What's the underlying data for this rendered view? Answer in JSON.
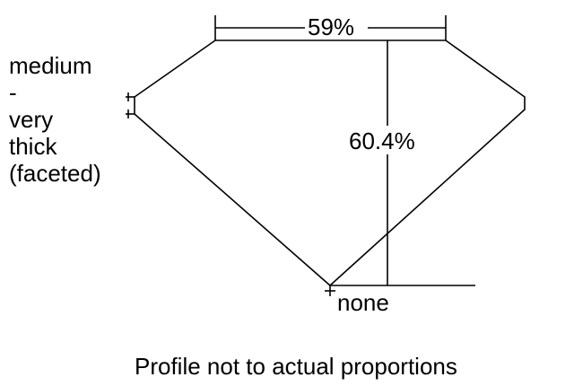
{
  "table_percent": "59%",
  "depth_percent": "60.4%",
  "girdle_label": [
    "medium",
    "-",
    "very",
    "thick",
    "(faceted)"
  ],
  "culet_label": "none",
  "caption": "Profile not to actual proportions"
}
